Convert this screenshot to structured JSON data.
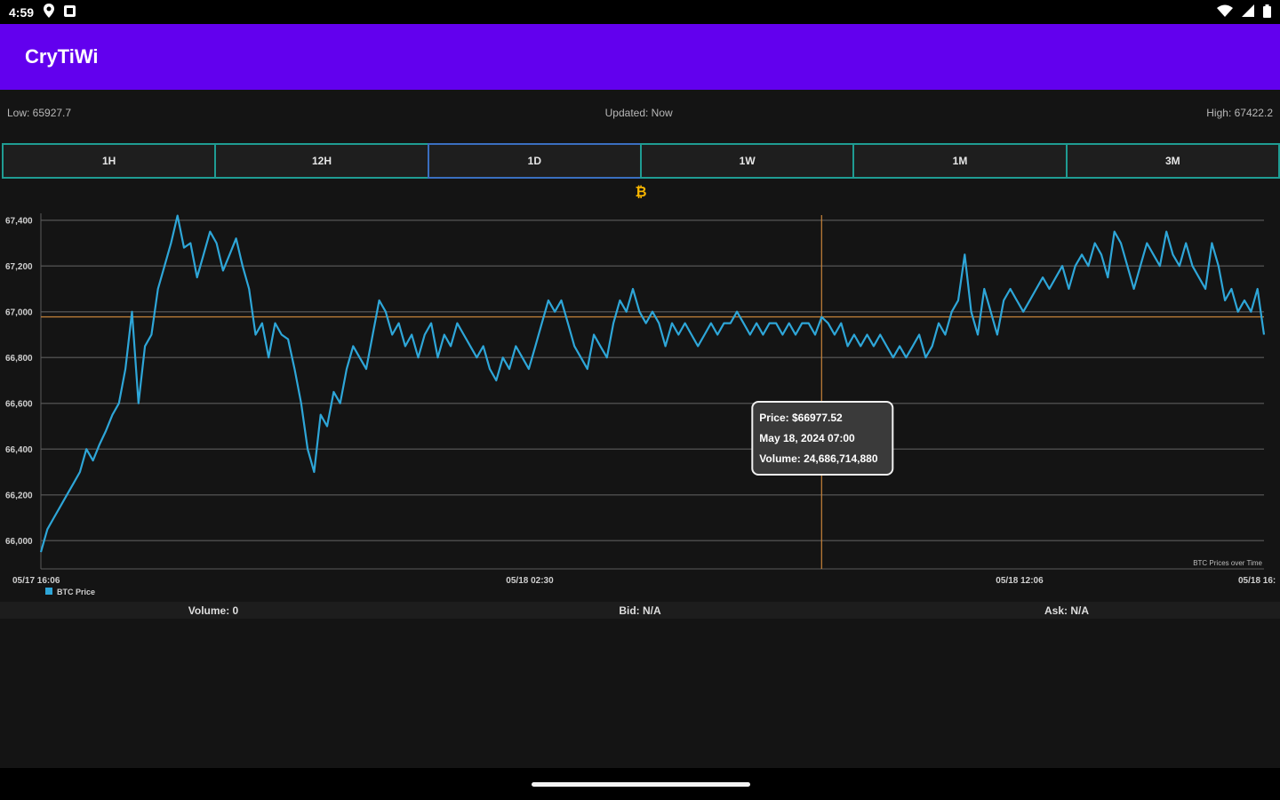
{
  "status_bar": {
    "time": "4:59"
  },
  "app": {
    "title": "CryTiWi"
  },
  "info": {
    "low": "Low: 65927.7",
    "updated": "Updated: Now",
    "high": "High: 67422.2"
  },
  "tabs": [
    {
      "label": "1H"
    },
    {
      "label": "12H"
    },
    {
      "label": "1D",
      "active": true
    },
    {
      "label": "1W"
    },
    {
      "label": "1M"
    },
    {
      "label": "3M"
    }
  ],
  "bitcoin_icon": "₿",
  "chart_data": {
    "type": "line",
    "y_ticks": [
      "67,400",
      "67,200",
      "67,000",
      "66,800",
      "66,600",
      "66,400",
      "66,200",
      "66,000"
    ],
    "ylim": [
      65900,
      67430
    ],
    "x_ticks": [
      "05/17 16:06",
      "05/18 02:30",
      "05/18 12:06",
      "05/18 16:"
    ],
    "legend": "BTC Price",
    "caption": "BTC Prices over Time",
    "line_color": "#2ea6d8",
    "crosshair_color": "#c8843a",
    "crosshair": {
      "x_index": 120,
      "y": 66977.52
    },
    "tooltip": {
      "price": "Price: $66977.52",
      "date": "May 18, 2024 07:00",
      "volume": "Volume: 24,686,714,880"
    },
    "series": [
      {
        "name": "BTC Price",
        "values": [
          65950,
          66050,
          66100,
          66150,
          66200,
          66250,
          66300,
          66400,
          66350,
          66420,
          66480,
          66550,
          66600,
          66750,
          67000,
          66600,
          66850,
          66900,
          67100,
          67200,
          67300,
          67420,
          67280,
          67300,
          67150,
          67250,
          67350,
          67300,
          67180,
          67250,
          67320,
          67200,
          67100,
          66900,
          66950,
          66800,
          66950,
          66900,
          66880,
          66750,
          66600,
          66400,
          66300,
          66550,
          66500,
          66650,
          66600,
          66750,
          66850,
          66800,
          66750,
          66900,
          67050,
          67000,
          66900,
          66950,
          66850,
          66900,
          66800,
          66900,
          66950,
          66800,
          66900,
          66850,
          66950,
          66900,
          66850,
          66800,
          66850,
          66750,
          66700,
          66800,
          66750,
          66850,
          66800,
          66750,
          66850,
          66950,
          67050,
          67000,
          67050,
          66950,
          66850,
          66800,
          66750,
          66900,
          66850,
          66800,
          66950,
          67050,
          67000,
          67100,
          67000,
          66950,
          67000,
          66950,
          66850,
          66950,
          66900,
          66950,
          66900,
          66850,
          66900,
          66950,
          66900,
          66950,
          66950,
          67000,
          66950,
          66900,
          66950,
          66900,
          66950,
          66950,
          66900,
          66950,
          66900,
          66950,
          66950,
          66900,
          66977,
          66950,
          66900,
          66950,
          66850,
          66900,
          66850,
          66900,
          66850,
          66900,
          66850,
          66800,
          66850,
          66800,
          66850,
          66900,
          66800,
          66850,
          66950,
          66900,
          67000,
          67050,
          67250,
          67000,
          66900,
          67100,
          67000,
          66900,
          67050,
          67100,
          67050,
          67000,
          67050,
          67100,
          67150,
          67100,
          67150,
          67200,
          67100,
          67200,
          67250,
          67200,
          67300,
          67250,
          67150,
          67350,
          67300,
          67200,
          67100,
          67200,
          67300,
          67250,
          67200,
          67350,
          67250,
          67200,
          67300,
          67200,
          67150,
          67100,
          67300,
          67200,
          67050,
          67100,
          67000,
          67050,
          67000,
          67100,
          66900
        ]
      }
    ]
  },
  "bottom": {
    "volume": "Volume: 0",
    "bid": "Bid: N/A",
    "ask": "Ask: N/A"
  }
}
